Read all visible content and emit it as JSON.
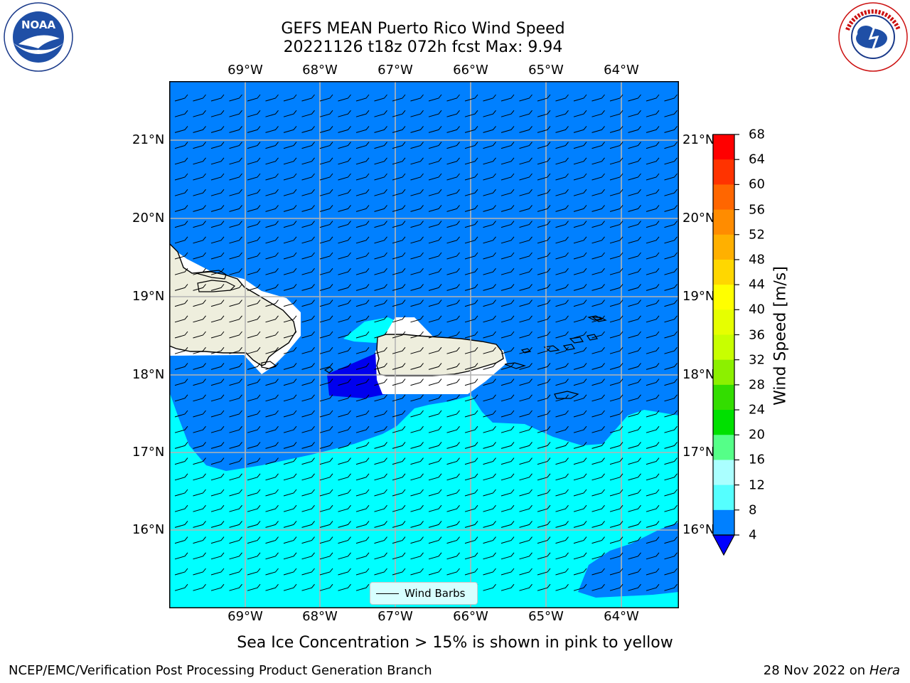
{
  "title": {
    "line1": "GEFS MEAN Puerto Rico Wind Speed",
    "line2": "20221126 t18z 072h fcst   Max: 9.94"
  },
  "axes": {
    "lon_labels": [
      "69°W",
      "68°W",
      "67°W",
      "66°W",
      "65°W",
      "64°W"
    ],
    "lat_labels": [
      "21°N",
      "20°N",
      "19°N",
      "18°N",
      "17°N",
      "16°N"
    ]
  },
  "colorbar": {
    "label": "Wind Speed [m/s]",
    "ticks": [
      "68",
      "64",
      "60",
      "56",
      "52",
      "48",
      "44",
      "40",
      "36",
      "32",
      "28",
      "24",
      "20",
      "16",
      "12",
      "8",
      "4"
    ],
    "colors": [
      "#ff0000",
      "#ff3000",
      "#ff6000",
      "#ff8c00",
      "#ffb000",
      "#ffd700",
      "#ffff00",
      "#e6ff00",
      "#c8ff00",
      "#8cf000",
      "#33dd00",
      "#00e000",
      "#00ff00",
      "#55ff88",
      "#aaffff",
      "#55ffff",
      "#00ffff",
      "#0080ff",
      "#0000ff"
    ]
  },
  "legend": {
    "label": "Wind Barbs"
  },
  "note": "Sea Ice Concentration > 15% is shown in pink to yellow",
  "footer": {
    "left": "NCEP/EMC/Verification Post Processing Product Generation Branch",
    "date": "28 Nov 2022 on",
    "machine": "Hera"
  },
  "logos": {
    "left": "NOAA",
    "right": "NATIONAL WEATHER SERVICE"
  }
}
